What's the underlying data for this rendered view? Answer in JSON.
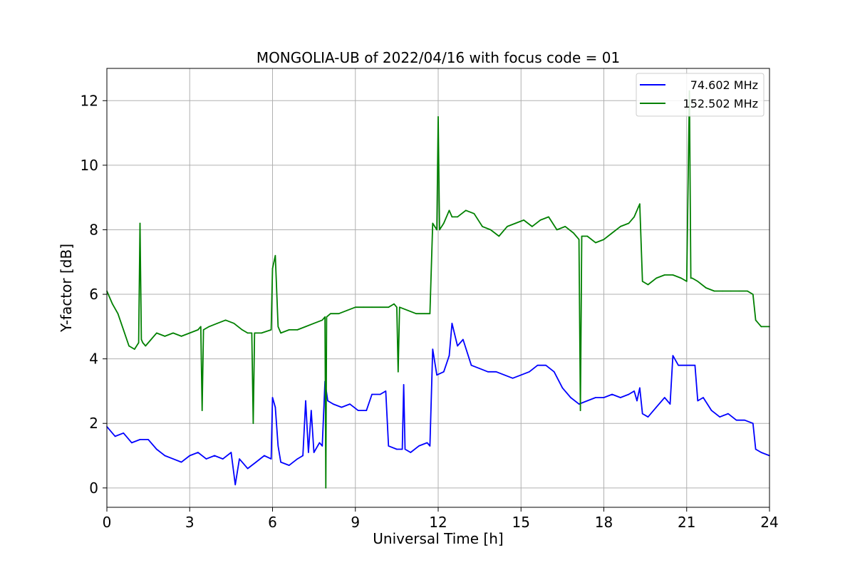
{
  "chart_data": {
    "type": "line",
    "title": "MONGOLIA-UB of 2022/04/16 with focus code = 01",
    "xlabel": "Universal Time [h]",
    "ylabel": "Y-factor [dB]",
    "xlim": [
      0,
      24
    ],
    "ylim": [
      -0.6,
      13
    ],
    "xticks": [
      0,
      3,
      6,
      9,
      12,
      15,
      18,
      21,
      24
    ],
    "yticks": [
      0,
      2,
      4,
      6,
      8,
      10,
      12
    ],
    "grid": true,
    "legend_position": "top-right",
    "series": [
      {
        "name": "74.602 MHz",
        "color": "#0000ff",
        "x": [
          0,
          0.3,
          0.6,
          0.9,
          1.2,
          1.5,
          1.8,
          2.1,
          2.4,
          2.7,
          3.0,
          3.3,
          3.6,
          3.9,
          4.2,
          4.5,
          4.65,
          4.8,
          5.1,
          5.4,
          5.7,
          5.95,
          6.0,
          6.1,
          6.2,
          6.3,
          6.6,
          6.9,
          7.1,
          7.2,
          7.3,
          7.4,
          7.5,
          7.7,
          7.8,
          7.9,
          8.0,
          8.2,
          8.5,
          8.8,
          9.1,
          9.4,
          9.6,
          9.9,
          10.1,
          10.2,
          10.5,
          10.7,
          10.75,
          10.8,
          11.0,
          11.3,
          11.6,
          11.7,
          11.8,
          11.95,
          12.2,
          12.4,
          12.5,
          12.7,
          12.9,
          13.2,
          13.5,
          13.8,
          14.1,
          14.4,
          14.7,
          15.0,
          15.3,
          15.6,
          15.9,
          16.2,
          16.5,
          16.8,
          17.1,
          17.4,
          17.7,
          18.0,
          18.3,
          18.6,
          18.9,
          19.1,
          19.2,
          19.3,
          19.4,
          19.6,
          19.9,
          20.2,
          20.4,
          20.5,
          20.7,
          21.0,
          21.3,
          21.4,
          21.6,
          21.9,
          22.2,
          22.5,
          22.8,
          23.1,
          23.4,
          23.5,
          23.7,
          24.0
        ],
        "values": [
          1.9,
          1.6,
          1.7,
          1.4,
          1.5,
          1.5,
          1.2,
          1.0,
          0.9,
          0.8,
          1.0,
          1.1,
          0.9,
          1.0,
          0.9,
          1.1,
          0.1,
          0.9,
          0.6,
          0.8,
          1.0,
          0.9,
          2.8,
          2.5,
          1.3,
          0.8,
          0.7,
          0.9,
          1.0,
          2.7,
          1.1,
          2.4,
          1.1,
          1.4,
          1.3,
          3.3,
          2.7,
          2.6,
          2.5,
          2.6,
          2.4,
          2.4,
          2.9,
          2.9,
          3.0,
          1.3,
          1.2,
          1.2,
          3.2,
          1.2,
          1.1,
          1.3,
          1.4,
          1.3,
          4.3,
          3.5,
          3.6,
          4.1,
          5.1,
          4.4,
          4.6,
          3.8,
          3.7,
          3.6,
          3.6,
          3.5,
          3.4,
          3.5,
          3.6,
          3.8,
          3.8,
          3.6,
          3.1,
          2.8,
          2.6,
          2.7,
          2.8,
          2.8,
          2.9,
          2.8,
          2.9,
          3.0,
          2.7,
          3.1,
          2.3,
          2.2,
          2.5,
          2.8,
          2.6,
          4.1,
          3.8,
          3.8,
          3.8,
          2.7,
          2.8,
          2.4,
          2.2,
          2.3,
          2.1,
          2.1,
          2.0,
          1.2,
          1.1,
          1.0
        ]
      },
      {
        "name": "152.502 MHz",
        "color": "#008000",
        "x": [
          0,
          0.2,
          0.4,
          0.6,
          0.8,
          1.0,
          1.15,
          1.2,
          1.25,
          1.3,
          1.4,
          1.6,
          1.8,
          2.1,
          2.4,
          2.7,
          3.0,
          3.3,
          3.4,
          3.45,
          3.5,
          3.7,
          4.0,
          4.3,
          4.6,
          4.9,
          5.1,
          5.25,
          5.3,
          5.35,
          5.6,
          5.95,
          6.0,
          6.1,
          6.2,
          6.3,
          6.6,
          6.9,
          7.2,
          7.5,
          7.8,
          7.9,
          7.93,
          7.96,
          8.1,
          8.4,
          8.7,
          9.0,
          9.3,
          9.6,
          9.9,
          10.2,
          10.4,
          10.5,
          10.55,
          10.6,
          10.9,
          11.2,
          11.5,
          11.7,
          11.8,
          11.95,
          12.0,
          12.05,
          12.2,
          12.4,
          12.5,
          12.7,
          13.0,
          13.3,
          13.6,
          13.9,
          14.2,
          14.5,
          14.8,
          15.1,
          15.4,
          15.7,
          16.0,
          16.3,
          16.6,
          16.9,
          17.1,
          17.15,
          17.2,
          17.4,
          17.7,
          18.0,
          18.3,
          18.6,
          18.9,
          19.1,
          19.3,
          19.4,
          19.6,
          19.9,
          20.2,
          20.5,
          20.8,
          21.0,
          21.1,
          21.15,
          21.2,
          21.4,
          21.7,
          22.0,
          22.3,
          22.6,
          22.9,
          23.2,
          23.4,
          23.5,
          23.7,
          24.0
        ],
        "values": [
          6.1,
          5.7,
          5.4,
          4.9,
          4.4,
          4.3,
          4.5,
          8.2,
          4.6,
          4.5,
          4.4,
          4.6,
          4.8,
          4.7,
          4.8,
          4.7,
          4.8,
          4.9,
          5.0,
          2.4,
          4.9,
          5.0,
          5.1,
          5.2,
          5.1,
          4.9,
          4.8,
          4.8,
          2.0,
          4.8,
          4.8,
          4.9,
          6.8,
          7.2,
          5.0,
          4.8,
          4.9,
          4.9,
          5.0,
          5.1,
          5.2,
          5.3,
          0.0,
          5.3,
          5.4,
          5.4,
          5.5,
          5.6,
          5.6,
          5.6,
          5.6,
          5.6,
          5.7,
          5.6,
          3.6,
          5.6,
          5.5,
          5.4,
          5.4,
          5.4,
          8.2,
          8.0,
          11.5,
          8.0,
          8.2,
          8.6,
          8.4,
          8.4,
          8.6,
          8.5,
          8.1,
          8.0,
          7.8,
          8.1,
          8.2,
          8.3,
          8.1,
          8.3,
          8.4,
          8.0,
          8.1,
          7.9,
          7.7,
          2.4,
          7.8,
          7.8,
          7.6,
          7.7,
          7.9,
          8.1,
          8.2,
          8.4,
          8.8,
          6.4,
          6.3,
          6.5,
          6.6,
          6.6,
          6.5,
          6.4,
          12.3,
          6.5,
          6.5,
          6.4,
          6.2,
          6.1,
          6.1,
          6.1,
          6.1,
          6.1,
          6.0,
          5.2,
          5.0,
          5.0
        ]
      }
    ]
  }
}
